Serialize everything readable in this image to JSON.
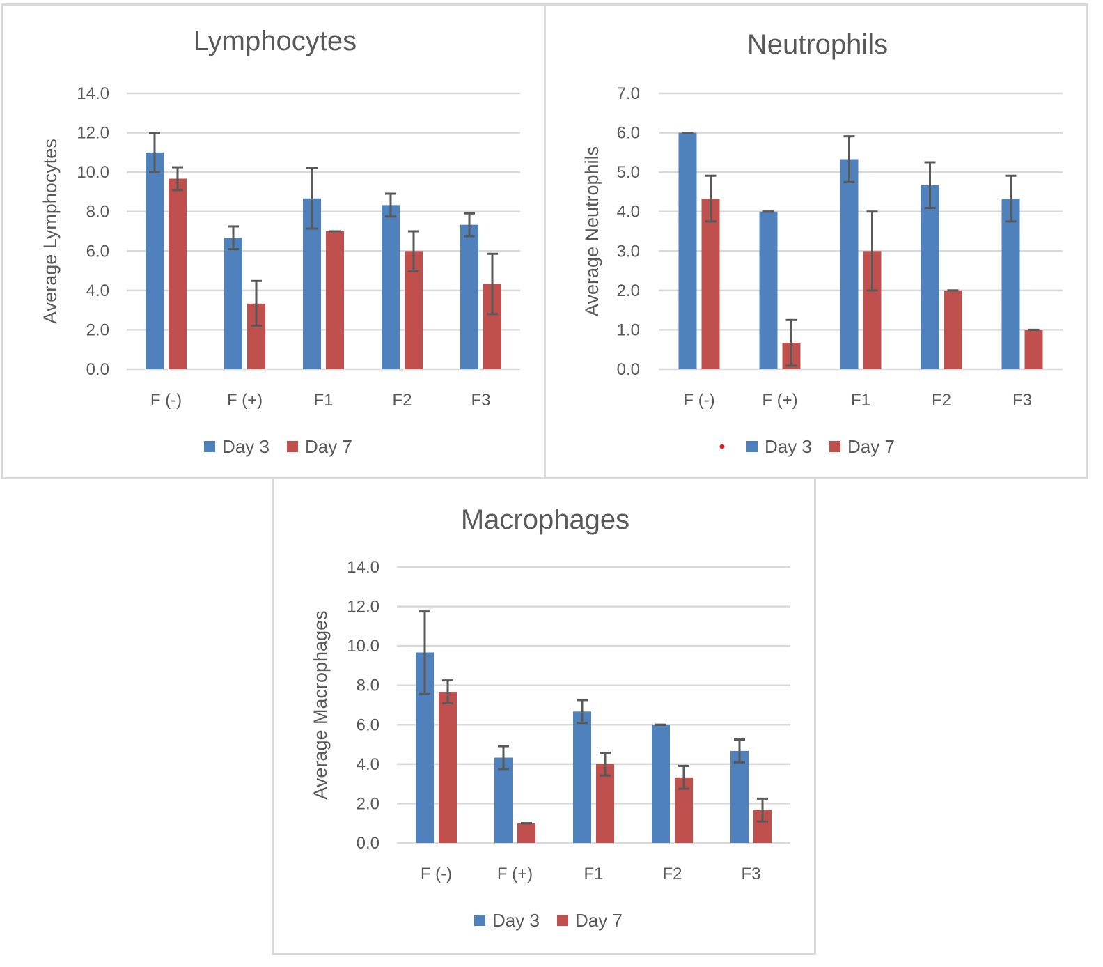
{
  "colors": {
    "day3": "#4f81bd",
    "day7": "#c0504d",
    "text": "#595959",
    "grid": "#d9d9d9",
    "errorbar": "#595959",
    "stray_dot": "#e02020"
  },
  "chart_data": [
    {
      "id": "lym",
      "type": "bar",
      "title": "Lymphocytes",
      "xlabel": "",
      "ylabel": "Average Lymphocytes",
      "categories": [
        "F (-)",
        "F (+)",
        "F1",
        "F2",
        "F3"
      ],
      "ylim": [
        0,
        14
      ],
      "yticks": [
        "0.0",
        "2.0",
        "4.0",
        "6.0",
        "8.0",
        "10.0",
        "12.0",
        "14.0"
      ],
      "grid": true,
      "legend_position": "bottom",
      "series": [
        {
          "name": "Day 3",
          "values": [
            11.0,
            6.67,
            8.67,
            8.33,
            7.33
          ],
          "errors": [
            1.0,
            0.58,
            1.53,
            0.58,
            0.58
          ]
        },
        {
          "name": "Day 7",
          "values": [
            9.67,
            3.33,
            7.0,
            6.0,
            4.33
          ],
          "errors": [
            0.58,
            1.15,
            0.0,
            1.0,
            1.53
          ]
        }
      ]
    },
    {
      "id": "neu",
      "type": "bar",
      "title": "Neutrophils",
      "xlabel": "",
      "ylabel": "Average Neutrophils",
      "categories": [
        "F (-)",
        "F (+)",
        "F1",
        "F2",
        "F3"
      ],
      "ylim": [
        0,
        7
      ],
      "yticks": [
        "0.0",
        "1.0",
        "2.0",
        "3.0",
        "4.0",
        "5.0",
        "6.0",
        "7.0"
      ],
      "grid": true,
      "legend_position": "bottom",
      "series": [
        {
          "name": "Day 3",
          "values": [
            6.0,
            4.0,
            5.33,
            4.67,
            4.33
          ],
          "errors": [
            0.0,
            0.0,
            0.58,
            0.58,
            0.58
          ]
        },
        {
          "name": "Day 7",
          "values": [
            4.33,
            0.67,
            3.0,
            2.0,
            1.0
          ],
          "errors": [
            0.58,
            0.58,
            1.0,
            0.0,
            0.0
          ]
        }
      ]
    },
    {
      "id": "mac",
      "type": "bar",
      "title": "Macrophages",
      "xlabel": "",
      "ylabel": "Average Macrophages",
      "categories": [
        "F (-)",
        "F (+)",
        "F1",
        "F2",
        "F3"
      ],
      "ylim": [
        0,
        14
      ],
      "yticks": [
        "0.0",
        "2.0",
        "4.0",
        "6.0",
        "8.0",
        "10.0",
        "12.0",
        "14.0"
      ],
      "grid": true,
      "legend_position": "bottom",
      "series": [
        {
          "name": "Day 3",
          "values": [
            9.67,
            4.33,
            6.67,
            6.0,
            4.67
          ],
          "errors": [
            2.08,
            0.58,
            0.58,
            0.0,
            0.58
          ]
        },
        {
          "name": "Day 7",
          "values": [
            7.67,
            1.0,
            4.0,
            3.33,
            1.67
          ],
          "errors": [
            0.58,
            0.0,
            0.58,
            0.58,
            0.58
          ]
        }
      ]
    }
  ]
}
